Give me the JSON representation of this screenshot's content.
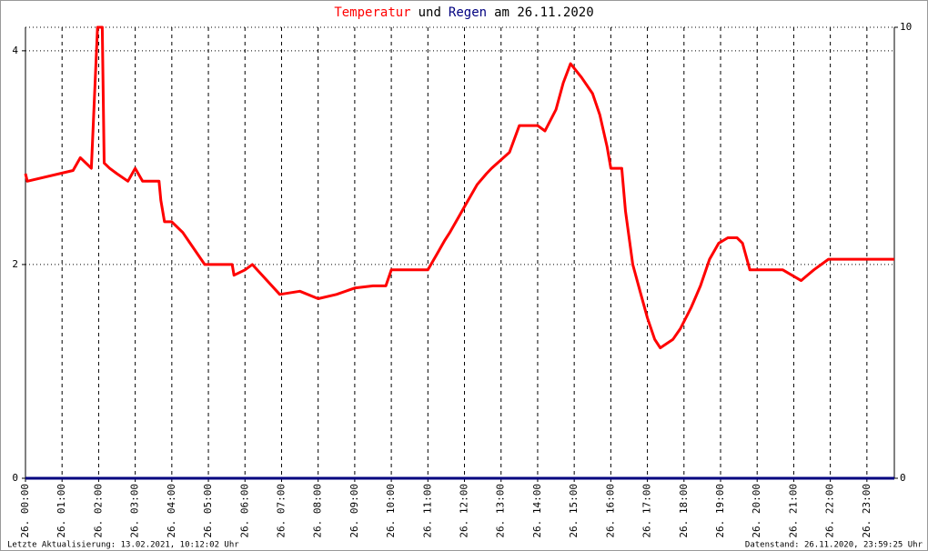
{
  "chart_data": {
    "type": "line",
    "title_parts": [
      "Temperatur",
      "und",
      "Regen",
      "am 26.11.2020"
    ],
    "title_colors": [
      "#ff0000",
      "#000000",
      "#000080",
      "#000000"
    ],
    "footer_left": "Letzte Aktualisierung: 13.02.2021, 10:12:02 Uhr",
    "footer_right": "Datenstand: 26.11.2020, 23:59:25 Uhr",
    "xlim": [
      0,
      23.75
    ],
    "xticks": [
      {
        "value": 0,
        "label": "26. 00:00"
      },
      {
        "value": 1,
        "label": "26. 01:00"
      },
      {
        "value": 2,
        "label": "26. 02:00"
      },
      {
        "value": 3,
        "label": "26. 03:00"
      },
      {
        "value": 4,
        "label": "26. 04:00"
      },
      {
        "value": 5,
        "label": "26. 05:00"
      },
      {
        "value": 6,
        "label": "26. 06:00"
      },
      {
        "value": 7,
        "label": "26. 07:00"
      },
      {
        "value": 8,
        "label": "26. 08:00"
      },
      {
        "value": 9,
        "label": "26. 09:00"
      },
      {
        "value": 10,
        "label": "26. 10:00"
      },
      {
        "value": 11,
        "label": "26. 11:00"
      },
      {
        "value": 12,
        "label": "26. 12:00"
      },
      {
        "value": 13,
        "label": "26. 13:00"
      },
      {
        "value": 14,
        "label": "26. 14:00"
      },
      {
        "value": 15,
        "label": "26. 15:00"
      },
      {
        "value": 16,
        "label": "26. 16:00"
      },
      {
        "value": 17,
        "label": "26. 17:00"
      },
      {
        "value": 18,
        "label": "26. 18:00"
      },
      {
        "value": 19,
        "label": "26. 19:00"
      },
      {
        "value": 20,
        "label": "26. 20:00"
      },
      {
        "value": 21,
        "label": "26. 21:00"
      },
      {
        "value": 22,
        "label": "26. 22:00"
      },
      {
        "value": 23,
        "label": "26. 23:00"
      }
    ],
    "ylim": [
      0,
      4.22
    ],
    "yticks": [
      0,
      2,
      4
    ],
    "y2lim": [
      0,
      10
    ],
    "y2ticks": [
      0,
      10
    ],
    "grid": true,
    "series": [
      {
        "name": "Temperatur",
        "color": "#ff0000",
        "x": [
          0,
          0.05,
          1.3,
          1.5,
          1.8,
          1.97,
          2.1,
          2.15,
          2.3,
          2.5,
          2.8,
          3.0,
          3.2,
          3.65,
          3.7,
          3.8,
          4.0,
          4.3,
          4.5,
          4.9,
          5.65,
          5.7,
          6.0,
          6.2,
          6.95,
          7.5,
          8.0,
          8.5,
          9.0,
          9.5,
          9.85,
          10.0,
          11.0,
          11.25,
          11.45,
          11.6,
          11.85,
          12.1,
          12.35,
          12.6,
          12.74,
          13.23,
          13.5,
          14.0,
          14.2,
          14.5,
          14.7,
          14.9,
          15.2,
          15.5,
          15.7,
          15.9,
          16.0,
          16.3,
          16.4,
          16.6,
          16.8,
          17.0,
          17.2,
          17.35,
          17.7,
          17.9,
          18.2,
          18.45,
          18.7,
          18.95,
          19.2,
          19.45,
          19.6,
          19.8,
          20.7,
          21.2,
          21.55,
          21.95,
          23.2,
          23.75
        ],
        "values": [
          2.85,
          2.78,
          2.88,
          3.0,
          2.9,
          4.22,
          4.22,
          2.95,
          2.9,
          2.85,
          2.78,
          2.9,
          2.78,
          2.78,
          2.6,
          2.4,
          2.4,
          2.3,
          2.2,
          2.0,
          2.0,
          1.9,
          1.95,
          2.0,
          1.72,
          1.75,
          1.68,
          1.72,
          1.78,
          1.8,
          1.8,
          1.95,
          1.95,
          2.1,
          2.22,
          2.3,
          2.45,
          2.6,
          2.75,
          2.85,
          2.9,
          3.05,
          3.3,
          3.3,
          3.25,
          3.45,
          3.7,
          3.88,
          3.75,
          3.6,
          3.4,
          3.1,
          2.9,
          2.9,
          2.5,
          2.0,
          1.75,
          1.5,
          1.3,
          1.22,
          1.3,
          1.4,
          1.6,
          1.8,
          2.05,
          2.2,
          2.25,
          2.25,
          2.2,
          1.95,
          1.95,
          1.85,
          1.95,
          2.05,
          2.05,
          2.05
        ]
      },
      {
        "name": "Regen",
        "color": "#000080",
        "axis": "y2",
        "x": [
          0,
          23.75
        ],
        "values": [
          0,
          0
        ]
      }
    ]
  }
}
